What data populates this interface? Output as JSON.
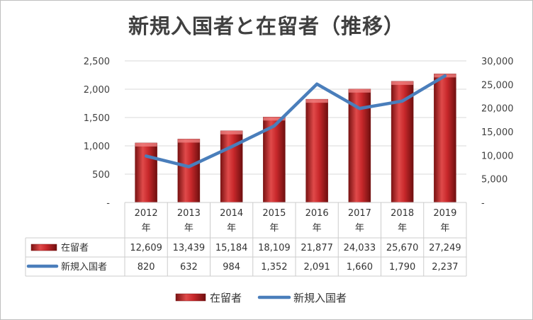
{
  "chart_data": {
    "type": "bar",
    "title": "新規入国者と在留者（推移）",
    "categories": [
      "2012年",
      "2013年",
      "2014年",
      "2015年",
      "2016年",
      "2017年",
      "2018年",
      "2019年"
    ],
    "series": [
      {
        "name": "在留者",
        "type": "bar",
        "axis": "right",
        "color": "#c0282b",
        "values": [
          12609,
          13439,
          15184,
          18109,
          21877,
          24033,
          25670,
          27249
        ],
        "labels": [
          "12,609",
          "13,439",
          "15,184",
          "18,109",
          "21,877",
          "24,033",
          "25,670",
          "27,249"
        ]
      },
      {
        "name": "新規入国者",
        "type": "line",
        "axis": "left",
        "color": "#4a7ebb",
        "values": [
          820,
          632,
          984,
          1352,
          2091,
          1660,
          1790,
          2237
        ],
        "labels": [
          "820",
          "632",
          "984",
          "1,352",
          "2,091",
          "1,660",
          "1,790",
          "2,237"
        ]
      }
    ],
    "y_left": {
      "min": 0,
      "max": 2500,
      "ticks": [
        "-",
        "500",
        "1,000",
        "1,500",
        "2,000",
        "2,500"
      ]
    },
    "y_right": {
      "min": 0,
      "max": 30000,
      "ticks": [
        "-",
        "5,000",
        "10,000",
        "15,000",
        "20,000",
        "25,000",
        "30,000"
      ]
    },
    "grid": true,
    "legend": "bottom",
    "data_table": true
  }
}
